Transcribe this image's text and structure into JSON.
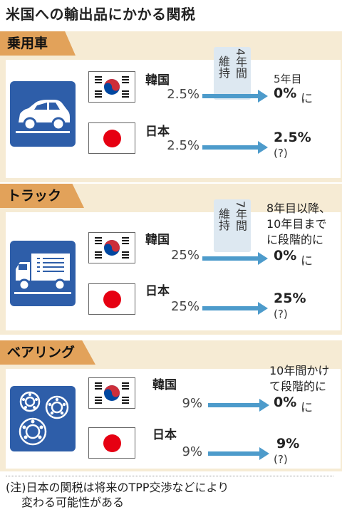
{
  "title": "米国への輸出品にかかる関税",
  "sections": [
    {
      "label": "乗用車",
      "icon": "car-icon",
      "iji_label": "維持",
      "iji_years": "4年間",
      "korea": {
        "name": "韓国",
        "rate": "2.5%",
        "result_pre": "5年目",
        "result": "0%",
        "result_suffix": "に"
      },
      "japan": {
        "name": "日本",
        "rate": "2.5%",
        "result": "2.5%",
        "result_note": "(?)"
      }
    },
    {
      "label": "トラック",
      "icon": "truck-icon",
      "iji_label": "維持",
      "iji_years": "7年間",
      "korea": {
        "name": "韓国",
        "rate": "25%",
        "desc1": "8年目以降、",
        "desc2": "10年目まで",
        "desc3": "に段階的に",
        "result": "0%",
        "result_suffix": "に"
      },
      "japan": {
        "name": "日本",
        "rate": "25%",
        "result": "25%",
        "result_note": "(?)"
      }
    },
    {
      "label": "ベアリング",
      "icon": "bearing-icon",
      "korea": {
        "name": "韓国",
        "rate": "9%",
        "desc1": "10年間かけ",
        "desc2": "て段階的に",
        "result": "0%",
        "result_suffix": "に"
      },
      "japan": {
        "name": "日本",
        "rate": "9%",
        "result": "9%",
        "result_note": "(?)"
      }
    }
  ],
  "footnote": {
    "line1": "(注)日本の関税は将来のTPP交渉などにより",
    "line2": "変わる可能性がある"
  },
  "colors": {
    "section_bg": "#f6ebd4",
    "label_bg": "#e2a25a",
    "tile_bg": "#2e5ea9",
    "arrow": "#4d9bcb",
    "iji_bg": "#dde8f1"
  }
}
